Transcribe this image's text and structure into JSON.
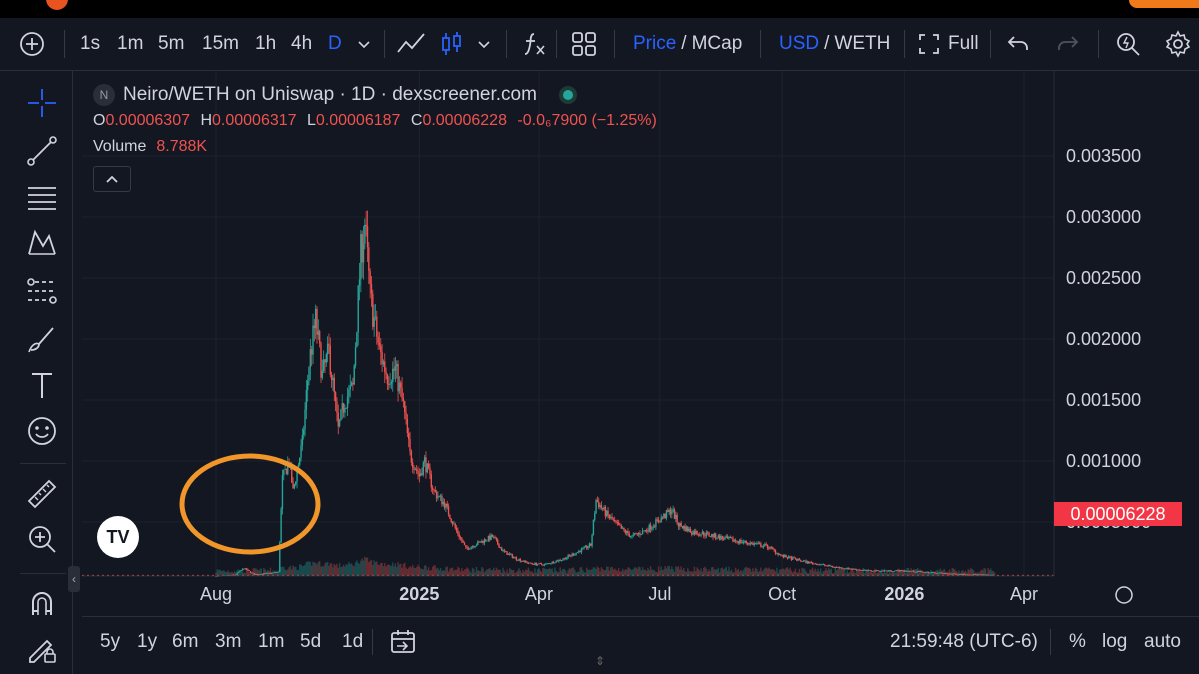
{
  "toolbar": {
    "timeframes": [
      "1s",
      "1m",
      "5m",
      "15m",
      "1h",
      "4h",
      "D"
    ],
    "active_timeframe": "D",
    "price_label": "Price",
    "mcap_label": "MCap",
    "usd_label": "USD",
    "weth_label": "WETH",
    "slash": "/",
    "full_label": "Full"
  },
  "legend": {
    "pair_title": "Neiro/WETH on Uniswap · 1D · dexscreener.com",
    "badge": "N",
    "o_key": "O",
    "o_val": "0.00006307",
    "h_key": "H",
    "h_val": "0.00006317",
    "l_key": "L",
    "l_val": "0.00006187",
    "c_key": "C",
    "c_val": "0.00006228",
    "change": "-0.0₆7900 (−1.25%)",
    "volume_key": "Volume",
    "volume_val": "8.788K"
  },
  "bottom": {
    "ranges": [
      "5y",
      "1y",
      "6m",
      "3m",
      "1m",
      "5d",
      "1d"
    ],
    "clock": "21:59:48 (UTC-6)",
    "percent": "%",
    "log": "log",
    "auto": "auto"
  },
  "colors": {
    "up": "#26a69a",
    "down": "#ef5350",
    "background": "#131722",
    "accent": "#2962ff",
    "highlight_circle": "#f0962a"
  },
  "chart_data": {
    "type": "candlestick",
    "current_price": "0.00006228",
    "y_ticks": [
      "0.003500",
      "0.003000",
      "0.002500",
      "0.002000",
      "0.001500",
      "0.001000",
      "0.0005000"
    ],
    "ylim": [
      0,
      0.0035
    ],
    "x_ticks": [
      "Aug",
      "2025",
      "Apr",
      "Jul",
      "Oct",
      "2026",
      "Apr"
    ],
    "x_tick_dates": [
      "2024-08-01",
      "2025-01-01",
      "2025-04-01",
      "2025-07-01",
      "2025-10-01",
      "2026-01-01",
      "2026-04-01"
    ],
    "x_range": [
      "2024-07-01",
      "2026-05-10"
    ],
    "bold_ticks": [
      "2025",
      "2026"
    ],
    "price_path": [
      [
        "2024-08-01",
        5.5e-05
      ],
      [
        "2024-08-15",
        6.5e-05
      ],
      [
        "2024-08-22",
        0.00012
      ],
      [
        "2024-08-30",
        7e-05
      ],
      [
        "2024-09-10",
        8e-05
      ],
      [
        "2024-09-17",
        9e-05
      ],
      [
        "2024-09-20",
        0.00085
      ],
      [
        "2024-09-25",
        0.001
      ],
      [
        "2024-09-28",
        0.00075
      ],
      [
        "2024-10-05",
        0.00115
      ],
      [
        "2024-10-10",
        0.0018
      ],
      [
        "2024-10-15",
        0.00215
      ],
      [
        "2024-10-20",
        0.0017
      ],
      [
        "2024-10-25",
        0.0019
      ],
      [
        "2024-11-01",
        0.00125
      ],
      [
        "2024-11-06",
        0.0015
      ],
      [
        "2024-11-12",
        0.0016
      ],
      [
        "2024-11-18",
        0.0027
      ],
      [
        "2024-11-21",
        0.00295
      ],
      [
        "2024-11-25",
        0.00235
      ],
      [
        "2024-12-02",
        0.0019
      ],
      [
        "2024-12-08",
        0.0017
      ],
      [
        "2024-12-14",
        0.00175
      ],
      [
        "2024-12-20",
        0.00145
      ],
      [
        "2024-12-25",
        0.00105
      ],
      [
        "2025-01-01",
        0.00088
      ],
      [
        "2025-01-05",
        0.001
      ],
      [
        "2025-01-12",
        0.00075
      ],
      [
        "2025-01-20",
        0.00065
      ],
      [
        "2025-01-28",
        0.00045
      ],
      [
        "2025-02-05",
        0.00028
      ],
      [
        "2025-02-15",
        0.00033
      ],
      [
        "2025-02-25",
        0.00038
      ],
      [
        "2025-03-05",
        0.00026
      ],
      [
        "2025-03-15",
        0.0002
      ],
      [
        "2025-03-25",
        0.00016
      ],
      [
        "2025-04-05",
        0.00015
      ],
      [
        "2025-04-20",
        0.0002
      ],
      [
        "2025-05-01",
        0.00026
      ],
      [
        "2025-05-10",
        0.00031
      ],
      [
        "2025-05-14",
        0.00068
      ],
      [
        "2025-05-22",
        0.00056
      ],
      [
        "2025-06-01",
        0.00045
      ],
      [
        "2025-06-10",
        0.00038
      ],
      [
        "2025-06-20",
        0.00043
      ],
      [
        "2025-07-01",
        0.00052
      ],
      [
        "2025-07-10",
        0.0006
      ],
      [
        "2025-07-15",
        0.00048
      ],
      [
        "2025-07-25",
        0.00042
      ],
      [
        "2025-08-05",
        0.0004
      ],
      [
        "2025-08-20",
        0.00036
      ],
      [
        "2025-09-05",
        0.00033
      ],
      [
        "2025-09-20",
        0.0003
      ],
      [
        "2025-10-01",
        0.00022
      ],
      [
        "2025-10-20",
        0.00017
      ],
      [
        "2025-11-10",
        0.00013
      ],
      [
        "2025-12-05",
        0.0001
      ],
      [
        "2026-01-01",
        0.0001
      ],
      [
        "2026-01-15",
        9e-05
      ],
      [
        "2026-02-05",
        7.5e-05
      ],
      [
        "2026-02-25",
        6.8e-05
      ],
      [
        "2026-03-10",
        6.2e-05
      ]
    ],
    "annotation": "orange circle around Aug 2024 low-price region"
  }
}
